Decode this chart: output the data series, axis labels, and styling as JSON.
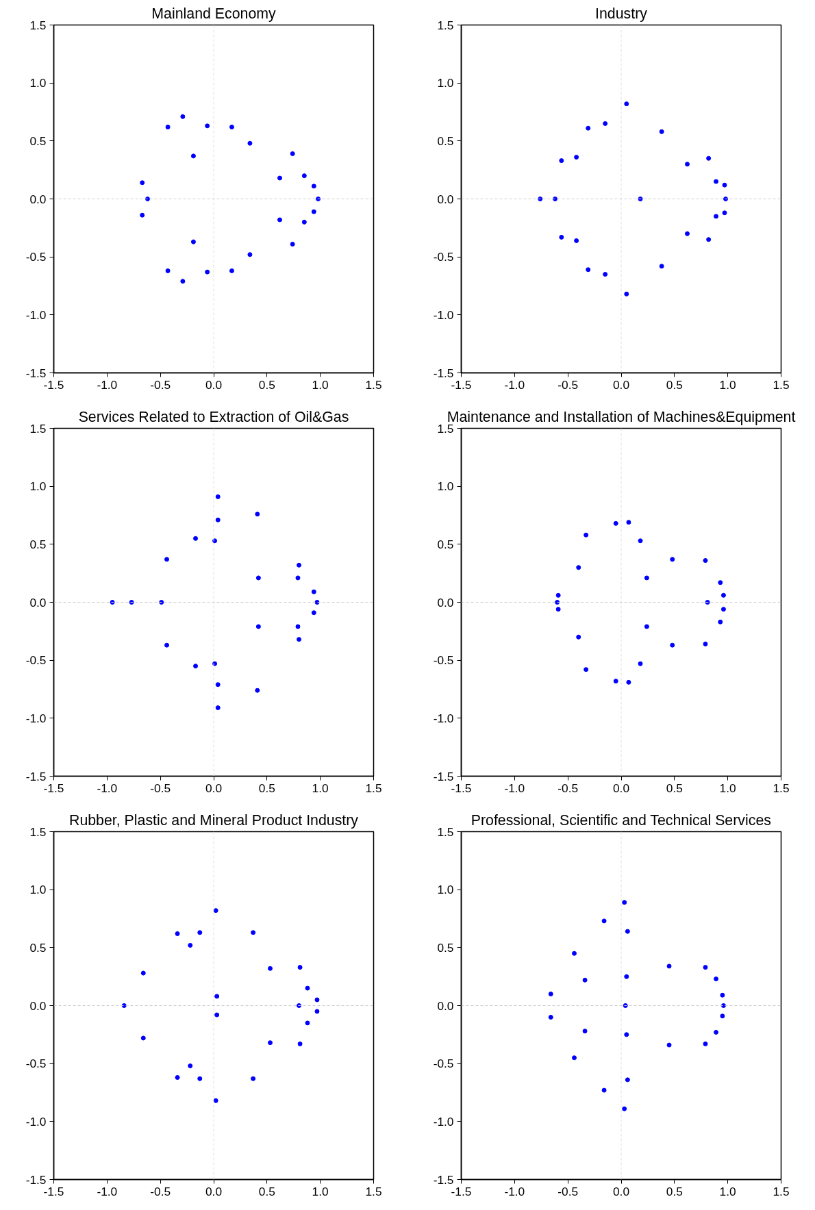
{
  "chart_data": [
    {
      "type": "scatter",
      "title": "Mainland Economy",
      "xlim": [
        -1.5,
        1.5
      ],
      "ylim": [
        -1.5,
        1.5
      ],
      "xticks": [
        -1.5,
        {
          "value": -1,
          "label": "-1.0"
        },
        -0.5,
        {
          "value": 0,
          "label": "0.0"
        },
        0.5,
        {
          "value": 1,
          "label": "1.0"
        },
        1.5
      ],
      "yticks": [
        -1.5,
        {
          "value": -1,
          "label": "-1.0"
        },
        -0.5,
        {
          "value": 0,
          "label": "0.0"
        },
        0.5,
        {
          "value": 1,
          "label": "1.0"
        },
        1.5
      ],
      "grid": false,
      "marker": "circle",
      "ref_lines": [
        {
          "axis": "x",
          "value": 0,
          "color": "#e0e0e0",
          "line_style": "dashed"
        },
        {
          "axis": "y",
          "value": 0,
          "color": "#cccccc",
          "line_style": "dashed"
        }
      ],
      "series": [
        {
          "color": "#0000ff",
          "x": [
            -0.29,
            -0.43,
            -0.06,
            0.17,
            0.34,
            -0.19,
            0.74,
            0.62,
            0.85,
            0.94,
            -0.67,
            -0.62,
            0.98,
            -0.67,
            0.94,
            0.62,
            0.85,
            0.74,
            -0.19,
            0.34,
            -0.43,
            -0.29,
            -0.06,
            0.17
          ],
          "values": [
            0.71,
            0.62,
            0.63,
            0.62,
            0.48,
            0.37,
            0.39,
            0.18,
            0.2,
            0.11,
            0.14,
            0,
            0,
            -0.14,
            -0.11,
            -0.18,
            -0.2,
            -0.39,
            -0.37,
            -0.48,
            -0.62,
            -0.71,
            -0.63,
            -0.62
          ]
        }
      ]
    },
    {
      "type": "scatter",
      "title": "Industry",
      "xlim": [
        -1.5,
        1.5
      ],
      "ylim": [
        -1.5,
        1.5
      ],
      "xticks": [
        -1.5,
        {
          "value": -1,
          "label": "-1.0"
        },
        -0.5,
        {
          "value": 0,
          "label": "0.0"
        },
        0.5,
        {
          "value": 1,
          "label": "1.0"
        },
        1.5
      ],
      "yticks": [
        -1.5,
        {
          "value": -1,
          "label": "-1.0"
        },
        -0.5,
        {
          "value": 0,
          "label": "0.0"
        },
        0.5,
        {
          "value": 1,
          "label": "1.0"
        },
        1.5
      ],
      "grid": false,
      "marker": "circle",
      "ref_lines": [
        {
          "axis": "x",
          "value": 0,
          "color": "#e0e0e0",
          "line_style": "dashed"
        },
        {
          "axis": "y",
          "value": 0,
          "color": "#cccccc",
          "line_style": "dashed"
        }
      ],
      "series": [
        {
          "color": "#0000ff",
          "x": [
            0.05,
            -0.15,
            -0.31,
            0.38,
            -0.42,
            -0.56,
            0.82,
            0.62,
            0.89,
            0.97,
            -0.76,
            -0.62,
            0.18,
            0.98,
            0.97,
            0.89,
            0.62,
            0.82,
            -0.56,
            -0.42,
            -0.31,
            -0.15,
            0.38,
            0.05
          ],
          "values": [
            0.82,
            0.65,
            0.61,
            0.58,
            0.36,
            0.33,
            0.35,
            0.3,
            0.15,
            0.12,
            0,
            0,
            0,
            0,
            -0.12,
            -0.15,
            -0.3,
            -0.35,
            -0.33,
            -0.36,
            -0.61,
            -0.65,
            -0.58,
            -0.82
          ]
        }
      ]
    },
    {
      "type": "scatter",
      "title": "Services Related to Extraction of Oil&Gas",
      "xlim": [
        -1.5,
        1.5
      ],
      "ylim": [
        -1.5,
        1.5
      ],
      "xticks": [
        -1.5,
        {
          "value": -1,
          "label": "-1.0"
        },
        -0.5,
        {
          "value": 0,
          "label": "0.0"
        },
        0.5,
        {
          "value": 1,
          "label": "1.0"
        },
        1.5
      ],
      "yticks": [
        -1.5,
        {
          "value": -1,
          "label": "-1.0"
        },
        -0.5,
        {
          "value": 0,
          "label": "0.0"
        },
        0.5,
        {
          "value": 1,
          "label": "1.0"
        },
        1.5
      ],
      "grid": false,
      "marker": "circle",
      "ref_lines": [
        {
          "axis": "x",
          "value": 0,
          "color": "#e0e0e0",
          "line_style": "dashed"
        },
        {
          "axis": "y",
          "value": 0,
          "color": "#cccccc",
          "line_style": "dashed"
        }
      ],
      "series": [
        {
          "color": "#0000ff",
          "x": [
            0.04,
            0.41,
            0.04,
            -0.17,
            0.01,
            -0.44,
            0.8,
            0.42,
            0.79,
            0.94,
            -0.95,
            -0.77,
            -0.49,
            0.97,
            0.94,
            0.42,
            0.79,
            0.8,
            -0.44,
            -0.17,
            0.01,
            0.04,
            0.41,
            0.04
          ],
          "values": [
            0.91,
            0.76,
            0.71,
            0.55,
            0.53,
            0.37,
            0.32,
            0.21,
            0.21,
            0.09,
            0,
            0,
            0,
            0,
            -0.09,
            -0.21,
            -0.21,
            -0.32,
            -0.37,
            -0.55,
            -0.53,
            -0.71,
            -0.76,
            -0.91
          ]
        }
      ]
    },
    {
      "type": "scatter",
      "title": "Maintenance and Installation of Machines&Equipment",
      "xlim": [
        -1.5,
        1.5
      ],
      "ylim": [
        -1.5,
        1.5
      ],
      "xticks": [
        -1.5,
        {
          "value": -1,
          "label": "-1.0"
        },
        -0.5,
        {
          "value": 0,
          "label": "0.0"
        },
        0.5,
        {
          "value": 1,
          "label": "1.0"
        },
        1.5
      ],
      "yticks": [
        -1.5,
        {
          "value": -1,
          "label": "-1.0"
        },
        -0.5,
        {
          "value": 0,
          "label": "0.0"
        },
        0.5,
        {
          "value": 1,
          "label": "1.0"
        },
        1.5
      ],
      "grid": false,
      "marker": "circle",
      "ref_lines": [
        {
          "axis": "x",
          "value": 0,
          "color": "#e0e0e0",
          "line_style": "dashed"
        },
        {
          "axis": "y",
          "value": 0,
          "color": "#cccccc",
          "line_style": "dashed"
        }
      ],
      "series": [
        {
          "color": "#0000ff",
          "x": [
            -0.05,
            0.07,
            -0.33,
            0.18,
            0.48,
            0.79,
            -0.4,
            0.24,
            0.93,
            -0.59,
            0.96,
            -0.6,
            0.81,
            -0.59,
            0.96,
            0.93,
            0.24,
            -0.4,
            0.48,
            0.79,
            0.18,
            -0.33,
            -0.05,
            0.07
          ],
          "values": [
            0.68,
            0.69,
            0.58,
            0.53,
            0.37,
            0.36,
            0.3,
            0.21,
            0.17,
            0.06,
            0.06,
            0,
            0,
            -0.06,
            -0.06,
            -0.17,
            -0.21,
            -0.3,
            -0.37,
            -0.36,
            -0.53,
            -0.58,
            -0.68,
            -0.69
          ]
        }
      ]
    },
    {
      "type": "scatter",
      "title": "Rubber, Plastic and Mineral Product Industry",
      "xlim": [
        -1.5,
        1.5
      ],
      "ylim": [
        -1.5,
        1.5
      ],
      "xticks": [
        -1.5,
        {
          "value": -1,
          "label": "-1.0"
        },
        -0.5,
        {
          "value": 0,
          "label": "0.0"
        },
        0.5,
        {
          "value": 1,
          "label": "1.0"
        },
        1.5
      ],
      "yticks": [
        -1.5,
        {
          "value": -1,
          "label": "-1.0"
        },
        -0.5,
        {
          "value": 0,
          "label": "0.0"
        },
        0.5,
        {
          "value": 1,
          "label": "1.0"
        },
        1.5
      ],
      "grid": false,
      "marker": "circle",
      "ref_lines": [
        {
          "axis": "x",
          "value": 0,
          "color": "#e0e0e0",
          "line_style": "dashed"
        },
        {
          "axis": "y",
          "value": 0,
          "color": "#cccccc",
          "line_style": "dashed"
        }
      ],
      "series": [
        {
          "color": "#0000ff",
          "x": [
            0.02,
            -0.34,
            -0.13,
            0.37,
            -0.22,
            -0.66,
            0.53,
            0.81,
            0.88,
            0.03,
            0.97,
            -0.84,
            0.8,
            0.03,
            0.97,
            0.88,
            -0.66,
            0.53,
            0.81,
            -0.22,
            -0.34,
            -0.13,
            0.37,
            0.02
          ],
          "values": [
            0.82,
            0.62,
            0.63,
            0.63,
            0.52,
            0.28,
            0.32,
            0.33,
            0.15,
            0.08,
            0.05,
            0,
            0,
            -0.08,
            -0.05,
            -0.15,
            -0.28,
            -0.32,
            -0.33,
            -0.52,
            -0.62,
            -0.63,
            -0.63,
            -0.82
          ]
        }
      ]
    },
    {
      "type": "scatter",
      "title": "Professional, Scientific and Technical Services",
      "xlim": [
        -1.5,
        1.5
      ],
      "ylim": [
        -1.5,
        1.5
      ],
      "xticks": [
        -1.5,
        {
          "value": -1,
          "label": "-1.0"
        },
        -0.5,
        {
          "value": 0,
          "label": "0.0"
        },
        0.5,
        {
          "value": 1,
          "label": "1.0"
        },
        1.5
      ],
      "yticks": [
        -1.5,
        {
          "value": -1,
          "label": "-1.0"
        },
        -0.5,
        {
          "value": 0,
          "label": "0.0"
        },
        0.5,
        {
          "value": 1,
          "label": "1.0"
        },
        1.5
      ],
      "grid": false,
      "marker": "circle",
      "ref_lines": [
        {
          "axis": "x",
          "value": 0,
          "color": "#e0e0e0",
          "line_style": "dashed"
        },
        {
          "axis": "y",
          "value": 0,
          "color": "#cccccc",
          "line_style": "dashed"
        }
      ],
      "series": [
        {
          "color": "#0000ff",
          "x": [
            0.03,
            -0.16,
            0.06,
            -0.44,
            0.45,
            0.79,
            0.05,
            -0.34,
            0.89,
            -0.66,
            0.95,
            0.04,
            0.96,
            -0.66,
            0.95,
            0.89,
            -0.34,
            0.05,
            0.45,
            0.79,
            0.06,
            -0.16,
            -0.44,
            0.03
          ],
          "values": [
            0.89,
            0.73,
            0.64,
            0.45,
            0.34,
            0.33,
            0.25,
            0.22,
            0.23,
            0.1,
            0.09,
            0,
            0,
            -0.1,
            -0.09,
            -0.23,
            -0.22,
            -0.25,
            -0.34,
            -0.33,
            -0.64,
            -0.73,
            -0.45,
            -0.89
          ]
        }
      ]
    }
  ]
}
